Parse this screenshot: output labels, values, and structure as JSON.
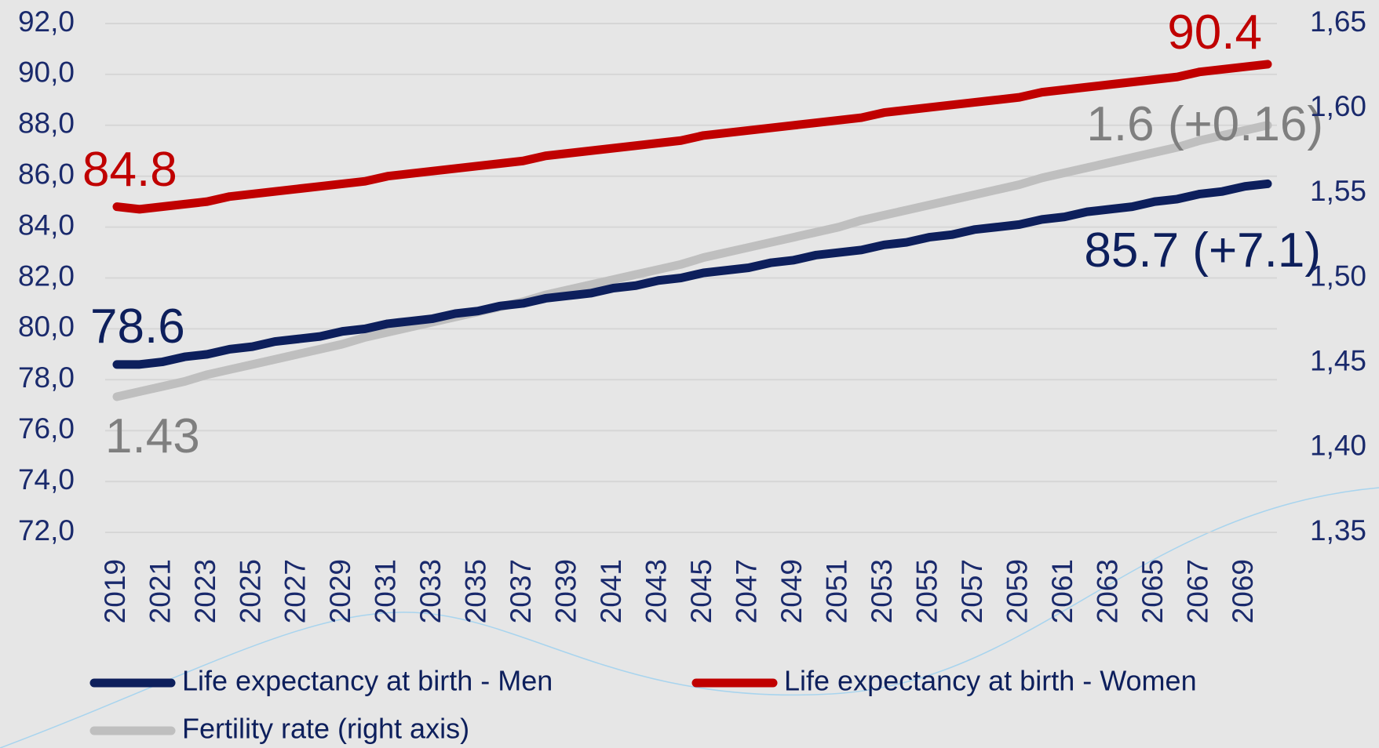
{
  "chart_data": {
    "type": "line",
    "x": [
      2019,
      2020,
      2021,
      2022,
      2023,
      2024,
      2025,
      2026,
      2027,
      2028,
      2029,
      2030,
      2031,
      2032,
      2033,
      2034,
      2035,
      2036,
      2037,
      2038,
      2039,
      2040,
      2041,
      2042,
      2043,
      2044,
      2045,
      2046,
      2047,
      2048,
      2049,
      2050,
      2051,
      2052,
      2053,
      2054,
      2055,
      2056,
      2057,
      2058,
      2059,
      2060,
      2061,
      2062,
      2063,
      2064,
      2065,
      2066,
      2067,
      2068,
      2069,
      2070
    ],
    "xlim": [
      2019,
      2070
    ],
    "xticks": [
      2019,
      2021,
      2023,
      2025,
      2027,
      2029,
      2031,
      2033,
      2035,
      2037,
      2039,
      2041,
      2043,
      2045,
      2047,
      2049,
      2051,
      2053,
      2055,
      2057,
      2059,
      2061,
      2063,
      2065,
      2067,
      2069
    ],
    "ylim": [
      72,
      92
    ],
    "yticks": [
      {
        "value": 72,
        "label": "72,0"
      },
      {
        "value": 74,
        "label": "74,0"
      },
      {
        "value": 76,
        "label": "76,0"
      },
      {
        "value": 78,
        "label": "78,0"
      },
      {
        "value": 80,
        "label": "80,0"
      },
      {
        "value": 82,
        "label": "82,0"
      },
      {
        "value": 84,
        "label": "84,0"
      },
      {
        "value": 86,
        "label": "86,0"
      },
      {
        "value": 88,
        "label": "88,0"
      },
      {
        "value": 90,
        "label": "90,0"
      },
      {
        "value": 92,
        "label": "92,0"
      }
    ],
    "y2lim": [
      1.35,
      1.65
    ],
    "y2ticks": [
      {
        "value": 1.35,
        "label": "1,35"
      },
      {
        "value": 1.4,
        "label": "1,40"
      },
      {
        "value": 1.45,
        "label": "1,45"
      },
      {
        "value": 1.5,
        "label": "1,50"
      },
      {
        "value": 1.55,
        "label": "1,55"
      },
      {
        "value": 1.6,
        "label": "1,60"
      },
      {
        "value": 1.65,
        "label": "1,65"
      }
    ],
    "grid": true,
    "legend": "bottom",
    "series": [
      {
        "name": "Life expectancy at birth - Men",
        "color": "#0d1f5c",
        "values": [
          78.6,
          78.6,
          78.7,
          78.9,
          79.0,
          79.2,
          79.3,
          79.5,
          79.6,
          79.7,
          79.9,
          80.0,
          80.2,
          80.3,
          80.4,
          80.6,
          80.7,
          80.9,
          81.0,
          81.2,
          81.3,
          81.4,
          81.6,
          81.7,
          81.9,
          82.0,
          82.2,
          82.3,
          82.4,
          82.6,
          82.7,
          82.9,
          83.0,
          83.1,
          83.3,
          83.4,
          83.6,
          83.7,
          83.9,
          84.0,
          84.1,
          84.3,
          84.4,
          84.6,
          84.7,
          84.8,
          85.0,
          85.1,
          85.3,
          85.4,
          85.6,
          85.7
        ]
      },
      {
        "name": "Life expectancy at birth - Women",
        "color": "#c00000",
        "values": [
          84.8,
          84.7,
          84.8,
          84.9,
          85.0,
          85.2,
          85.3,
          85.4,
          85.5,
          85.6,
          85.7,
          85.8,
          86.0,
          86.1,
          86.2,
          86.3,
          86.4,
          86.5,
          86.6,
          86.8,
          86.9,
          87.0,
          87.1,
          87.2,
          87.3,
          87.4,
          87.6,
          87.7,
          87.8,
          87.9,
          88.0,
          88.1,
          88.2,
          88.3,
          88.5,
          88.6,
          88.7,
          88.8,
          88.9,
          89.0,
          89.1,
          89.3,
          89.4,
          89.5,
          89.6,
          89.7,
          89.8,
          89.9,
          90.1,
          90.2,
          90.3,
          90.4
        ]
      },
      {
        "name": "Fertility rate (right axis)",
        "color": "#bfbfbf",
        "axis": "y2",
        "values": [
          1.43,
          1.433,
          1.436,
          1.439,
          1.443,
          1.446,
          1.449,
          1.452,
          1.455,
          1.458,
          1.461,
          1.465,
          1.468,
          1.471,
          1.474,
          1.477,
          1.48,
          1.483,
          1.486,
          1.49,
          1.493,
          1.496,
          1.499,
          1.502,
          1.505,
          1.508,
          1.512,
          1.515,
          1.518,
          1.521,
          1.524,
          1.527,
          1.53,
          1.534,
          1.537,
          1.54,
          1.543,
          1.546,
          1.549,
          1.552,
          1.555,
          1.559,
          1.562,
          1.565,
          1.568,
          1.571,
          1.574,
          1.577,
          1.581,
          1.584,
          1.587,
          1.59
        ]
      }
    ],
    "annotations": [
      {
        "text": "84.8",
        "color": "#c00000"
      },
      {
        "text": "78.6",
        "color": "#0d1f5c"
      },
      {
        "text": "1.43",
        "color": "#7f7f7f"
      },
      {
        "text": "90.4",
        "color": "#c00000"
      },
      {
        "text": "85.7 (+7.1)",
        "color": "#0d1f5c"
      },
      {
        "text": "1.6 (+0.16)",
        "color": "#7f7f7f"
      }
    ]
  }
}
